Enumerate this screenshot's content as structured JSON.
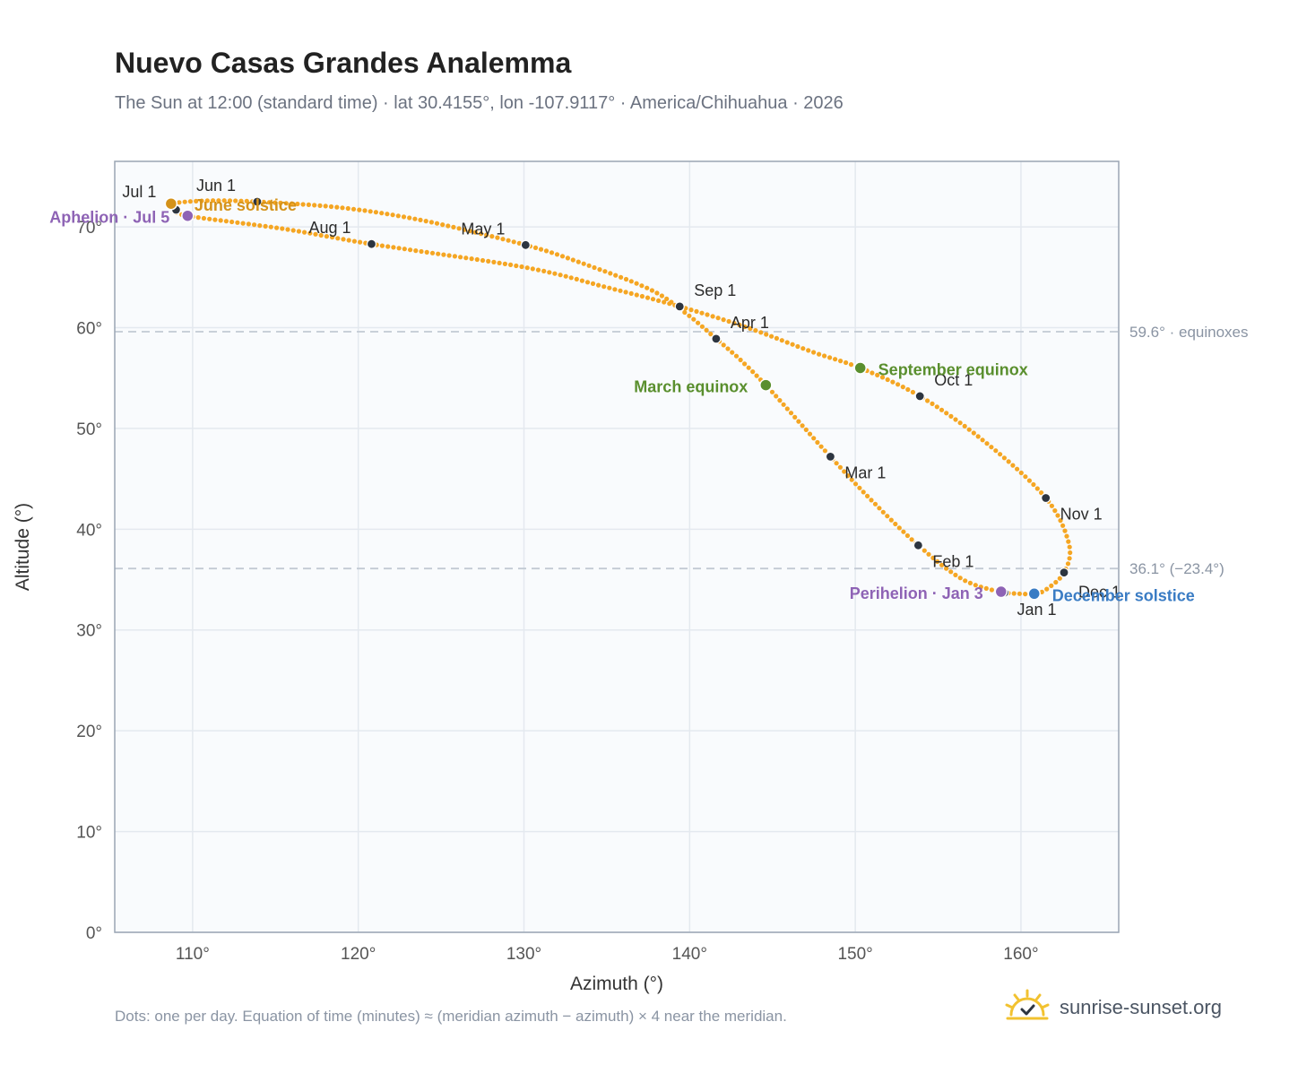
{
  "title": "Nuevo Casas Grandes Analemma",
  "subtitle": "The Sun at 12:00 (standard time) · lat 30.4155°, lon -107.9117° · America/Chihuahua · 2026",
  "footnote": "Dots: one per day. Equation of time (minutes) ≈ (meridian azimuth − azimuth) × 4 near the meridian.",
  "brand": {
    "text": "sunrise-sunset.org",
    "icon": "sun-logo-icon"
  },
  "colors": {
    "curve": "#f5a623",
    "month_dot": "#2d3540",
    "equinox": "#5a8f2e",
    "december_solstice": "#3a7cc4",
    "june_solstice": "#d4921a",
    "apsis": "#8e63b5",
    "grid": "#e4e9ef",
    "reference_line": "#c2cad4",
    "plot_background": "#f9fbfd",
    "axis_frame": "#9aa5b4"
  },
  "chart_data": {
    "type": "scatter",
    "xlabel": "Azimuth (°)",
    "ylabel": "Altitude (°)",
    "xlim": [
      105.3,
      165.9
    ],
    "ylim": [
      0,
      76.5
    ],
    "x_ticks": [
      {
        "value": 110,
        "label": "110°"
      },
      {
        "value": 120,
        "label": "120°"
      },
      {
        "value": 130,
        "label": "130°"
      },
      {
        "value": 140,
        "label": "140°"
      },
      {
        "value": 150,
        "label": "150°"
      },
      {
        "value": 160,
        "label": "160°"
      }
    ],
    "y_ticks": [
      {
        "value": 0,
        "label": "0°"
      },
      {
        "value": 10,
        "label": "10°"
      },
      {
        "value": 20,
        "label": "20°"
      },
      {
        "value": 30,
        "label": "30°"
      },
      {
        "value": 40,
        "label": "40°"
      },
      {
        "value": 50,
        "label": "50°"
      },
      {
        "value": 60,
        "label": "60°"
      },
      {
        "value": 70,
        "label": "70°"
      }
    ],
    "grid": true,
    "reference_lines": [
      {
        "y": 59.6,
        "label": "59.6° · equinoxes"
      },
      {
        "y": 36.1,
        "label": "36.1° (−23.4°)"
      }
    ],
    "path": [
      [
        158.9,
        33.7
      ],
      [
        156.5,
        35.0
      ],
      [
        153.8,
        38.4
      ],
      [
        150.9,
        43.0
      ],
      [
        148.5,
        47.2
      ],
      [
        146.3,
        51.2
      ],
      [
        144.6,
        54.3
      ],
      [
        143.0,
        56.9
      ],
      [
        141.6,
        58.9
      ],
      [
        139.8,
        61.4
      ],
      [
        137.6,
        63.8
      ],
      [
        133.5,
        66.4
      ],
      [
        130.1,
        68.2
      ],
      [
        124.0,
        70.6
      ],
      [
        119.0,
        71.9
      ],
      [
        113.9,
        72.5
      ],
      [
        111.0,
        72.6
      ],
      [
        108.7,
        72.3
      ],
      [
        109.0,
        71.7
      ],
      [
        109.7,
        71.1
      ],
      [
        115.5,
        69.8
      ],
      [
        120.8,
        68.3
      ],
      [
        130.0,
        66.0
      ],
      [
        135.0,
        64.0
      ],
      [
        139.4,
        62.1
      ],
      [
        143.5,
        60.0
      ],
      [
        147.4,
        57.6
      ],
      [
        150.3,
        56.0
      ],
      [
        153.9,
        53.2
      ],
      [
        157.8,
        48.7
      ],
      [
        161.5,
        43.1
      ],
      [
        162.9,
        38.5
      ],
      [
        162.6,
        35.7
      ],
      [
        161.5,
        34.0
      ],
      [
        160.8,
        33.6
      ],
      [
        159.9,
        33.6
      ],
      [
        158.9,
        33.7
      ]
    ],
    "month_markers": [
      {
        "label": "Jan 1",
        "az": 159.0,
        "alt": 33.7,
        "dx": 14,
        "dy": 25
      },
      {
        "label": "Feb 1",
        "az": 153.8,
        "alt": 38.4,
        "dx": 16,
        "dy": 24
      },
      {
        "label": "Mar 1",
        "az": 148.5,
        "alt": 47.2,
        "dx": 16,
        "dy": 24
      },
      {
        "label": "Apr 1",
        "az": 141.6,
        "alt": 58.9,
        "dx": 16,
        "dy": -12
      },
      {
        "label": "May 1",
        "az": 130.1,
        "alt": 68.2,
        "dx": -72,
        "dy": -12
      },
      {
        "label": "Jun 1",
        "az": 113.9,
        "alt": 72.5,
        "dx": -68,
        "dy": -12
      },
      {
        "label": "Jul 1",
        "az": 109.0,
        "alt": 71.7,
        "dx": -60,
        "dy": -14
      },
      {
        "label": "Aug 1",
        "az": 120.8,
        "alt": 68.3,
        "dx": -70,
        "dy": -12
      },
      {
        "label": "Sep 1",
        "az": 139.4,
        "alt": 62.1,
        "dx": 16,
        "dy": -12
      },
      {
        "label": "Oct 1",
        "az": 153.9,
        "alt": 53.2,
        "dx": 16,
        "dy": -12
      },
      {
        "label": "Nov 1",
        "az": 161.5,
        "alt": 43.1,
        "dx": 16,
        "dy": 24
      },
      {
        "label": "Dec 1",
        "az": 162.6,
        "alt": 35.7,
        "dx": 16,
        "dy": 28
      }
    ],
    "events": [
      {
        "label": "March equinox",
        "az": 144.6,
        "alt": 54.3,
        "color_key": "equinox",
        "anchor": "end",
        "dx": -20,
        "dy": 8
      },
      {
        "label": "September equinox",
        "az": 150.3,
        "alt": 56.0,
        "color_key": "equinox",
        "anchor": "start",
        "dx": 20,
        "dy": 8
      },
      {
        "label": "June solstice",
        "az": 108.7,
        "alt": 72.3,
        "color_key": "june_solstice",
        "anchor": "start",
        "dx": 26,
        "dy": 8
      },
      {
        "label": "December solstice",
        "az": 160.8,
        "alt": 33.6,
        "color_key": "december_solstice",
        "anchor": "start",
        "dx": 20,
        "dy": 8
      },
      {
        "label": "Aphelion · Jul 5",
        "az": 109.7,
        "alt": 71.1,
        "color_key": "apsis",
        "anchor": "end",
        "dx": -20,
        "dy": 8
      },
      {
        "label": "Perihelion · Jan 3",
        "az": 158.8,
        "alt": 33.8,
        "color_key": "apsis",
        "anchor": "end",
        "dx": -20,
        "dy": 8
      }
    ]
  }
}
